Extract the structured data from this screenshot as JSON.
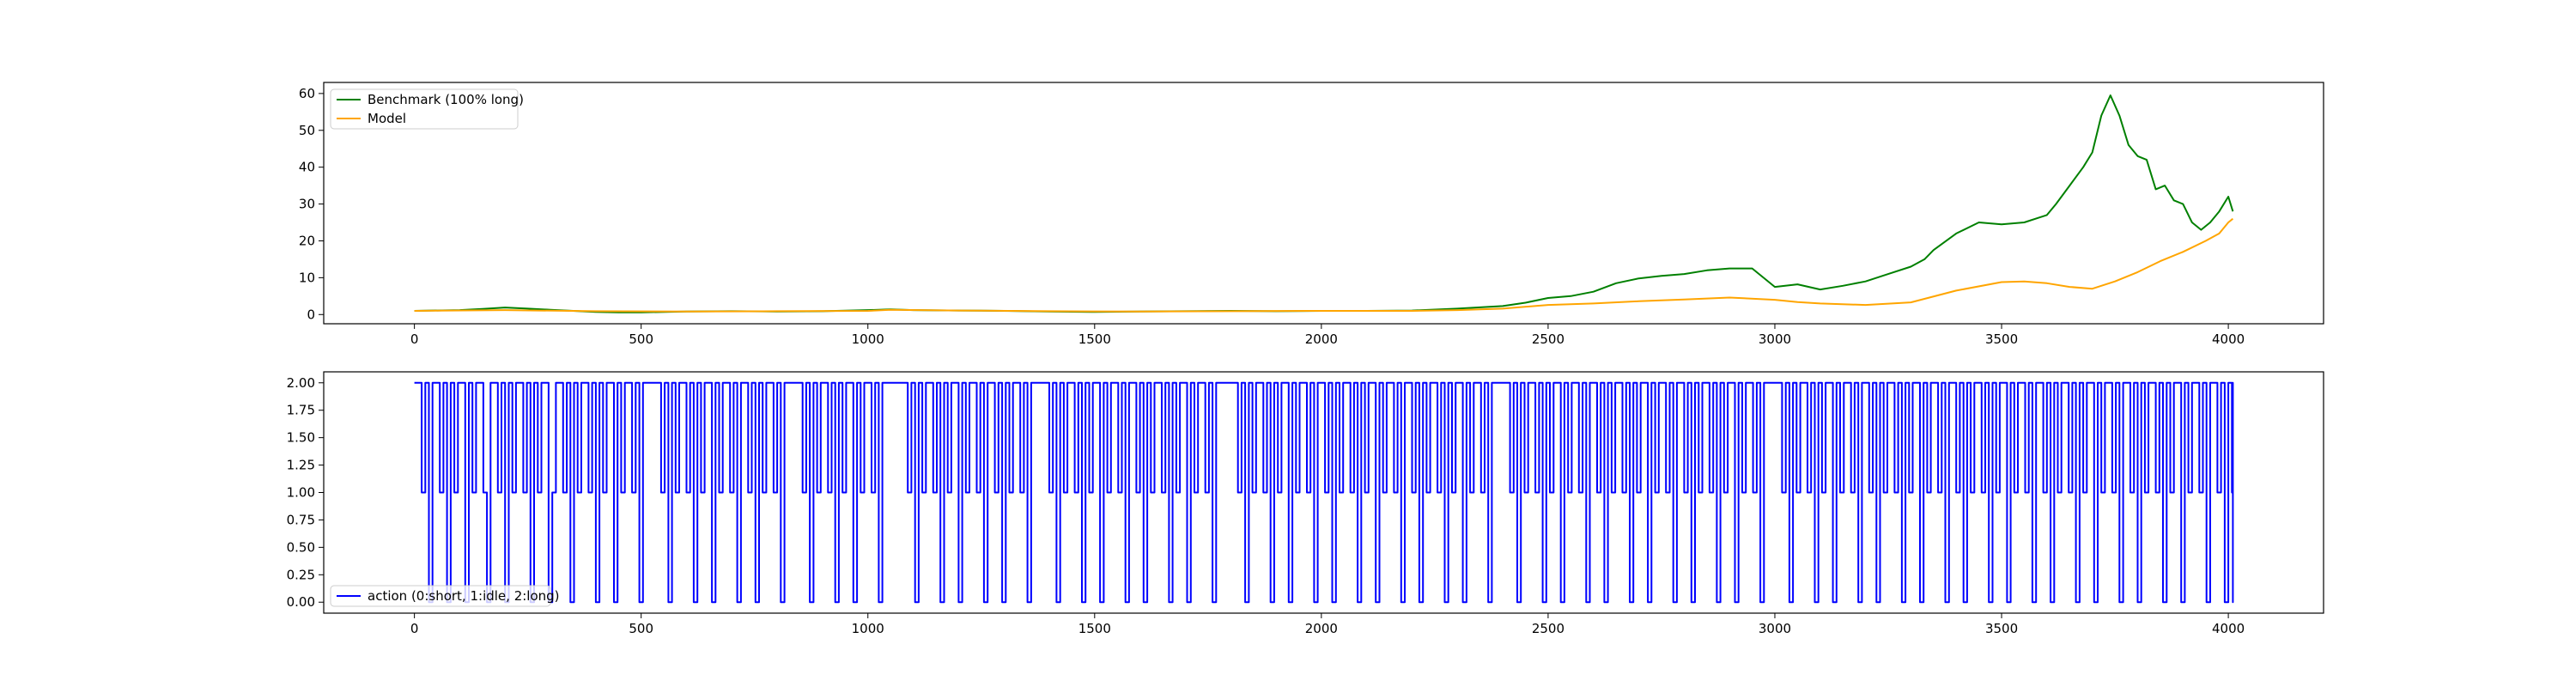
{
  "chart_data": [
    {
      "type": "line",
      "title": "",
      "xlabel": "",
      "ylabel": "",
      "xlim": [
        -200,
        4210
      ],
      "ylim": [
        -2.5,
        63
      ],
      "grid": false,
      "legend_position": "top-left",
      "x_ticks": [
        0,
        500,
        1000,
        1500,
        2000,
        2500,
        3000,
        3500,
        4000
      ],
      "y_ticks": [
        0,
        10,
        20,
        30,
        40,
        50,
        60
      ],
      "series": [
        {
          "name": "Benchmark (100% long)",
          "color": "#008000",
          "x": [
            0,
            100,
            150,
            200,
            250,
            300,
            350,
            400,
            450,
            500,
            600,
            700,
            800,
            900,
            1000,
            1050,
            1100,
            1200,
            1300,
            1400,
            1500,
            1600,
            1700,
            1800,
            1900,
            2000,
            2100,
            2200,
            2300,
            2400,
            2450,
            2500,
            2550,
            2600,
            2650,
            2700,
            2750,
            2800,
            2850,
            2900,
            2950,
            3000,
            3050,
            3100,
            3150,
            3200,
            3250,
            3300,
            3330,
            3350,
            3400,
            3450,
            3500,
            3550,
            3600,
            3620,
            3650,
            3680,
            3700,
            3720,
            3740,
            3760,
            3780,
            3800,
            3820,
            3840,
            3860,
            3880,
            3900,
            3920,
            3940,
            3960,
            3980,
            4000,
            4010
          ],
          "y": [
            1.0,
            1.2,
            1.5,
            1.9,
            1.6,
            1.3,
            1.0,
            0.7,
            0.6,
            0.6,
            0.8,
            0.9,
            0.8,
            0.9,
            1.2,
            1.4,
            1.2,
            1.1,
            1.0,
            0.8,
            0.7,
            0.8,
            0.9,
            1.0,
            0.9,
            1.0,
            1.0,
            1.1,
            1.6,
            2.3,
            3.2,
            4.5,
            5.0,
            6.2,
            8.5,
            9.8,
            10.5,
            11.0,
            12.0,
            12.5,
            12.5,
            7.5,
            8.2,
            6.8,
            7.8,
            9.0,
            11.0,
            13.0,
            15.0,
            17.5,
            22.0,
            25.0,
            24.5,
            25.0,
            27.0,
            30.0,
            35.0,
            40.0,
            44.0,
            54.0,
            59.5,
            54.0,
            46.0,
            43.0,
            42.0,
            34.0,
            35.0,
            31.0,
            30.0,
            25.0,
            23.0,
            25.0,
            28.0,
            32.0,
            28.0
          ]
        },
        {
          "name": "Model",
          "color": "#ffa500",
          "x": [
            0,
            200,
            400,
            600,
            800,
            1000,
            1050,
            1200,
            1400,
            1600,
            1800,
            2000,
            2200,
            2300,
            2400,
            2500,
            2600,
            2700,
            2800,
            2900,
            3000,
            3050,
            3100,
            3200,
            3300,
            3400,
            3500,
            3550,
            3600,
            3650,
            3700,
            3750,
            3800,
            3850,
            3900,
            3950,
            3980,
            4000,
            4010
          ],
          "y": [
            1.0,
            1.2,
            0.9,
            0.8,
            0.9,
            1.0,
            1.3,
            1.1,
            0.9,
            0.8,
            0.9,
            1.0,
            1.0,
            1.2,
            1.6,
            2.6,
            3.0,
            3.6,
            4.1,
            4.6,
            4.0,
            3.4,
            3.0,
            2.6,
            3.3,
            6.5,
            8.8,
            9.0,
            8.5,
            7.5,
            7.0,
            9.0,
            11.5,
            14.5,
            17.0,
            20.0,
            22.0,
            25.0,
            26.0
          ]
        }
      ]
    },
    {
      "type": "line",
      "title": "",
      "xlabel": "",
      "ylabel": "",
      "xlim": [
        -200,
        4210
      ],
      "ylim": [
        -0.1,
        2.1
      ],
      "grid": false,
      "legend_position": "bottom-left",
      "x_ticks": [
        0,
        500,
        1000,
        1500,
        2000,
        2500,
        3000,
        3500,
        4000
      ],
      "y_ticks": [
        "0.00",
        "0.25",
        "0.50",
        "0.75",
        "1.00",
        "1.25",
        "1.50",
        "1.75",
        "2.00"
      ],
      "step_interval": 8,
      "x_range": [
        0,
        4010
      ],
      "series": [
        {
          "name": "action (0:short, 1:idle, 2:long)",
          "color": "#0000ff",
          "values": [
            2,
            2,
            1,
            2,
            0,
            2,
            2,
            1,
            2,
            0,
            2,
            1,
            2,
            2,
            0,
            2,
            1,
            2,
            2,
            1,
            0,
            2,
            2,
            1,
            2,
            0,
            2,
            1,
            2,
            2,
            1,
            2,
            0,
            2,
            1,
            2,
            2,
            0,
            1,
            2,
            2,
            1,
            2,
            0,
            2,
            1,
            2,
            2,
            1,
            2,
            0,
            2,
            1,
            2,
            2,
            0,
            2,
            1,
            2,
            2,
            1,
            2,
            0,
            2,
            2,
            2,
            2,
            2,
            1,
            2,
            0,
            2,
            1,
            2,
            2,
            1,
            2,
            0,
            2,
            1,
            2,
            2,
            0,
            2,
            1,
            2,
            2,
            1,
            2,
            0,
            2,
            2,
            1,
            2,
            0,
            2,
            1,
            2,
            2,
            1,
            2,
            0,
            2,
            2,
            2,
            2,
            2,
            1,
            2,
            0,
            2,
            1,
            2,
            2,
            1,
            2,
            0,
            2,
            1,
            2,
            2,
            0,
            2,
            1,
            2,
            2,
            1,
            2,
            0,
            2,
            2,
            2,
            2,
            2,
            2,
            2,
            1,
            2,
            0,
            2,
            1,
            2,
            2,
            1,
            2,
            0,
            2,
            1,
            2,
            2,
            0,
            2,
            1,
            2,
            2,
            1,
            2,
            0,
            2,
            2,
            1,
            2,
            0,
            2,
            1,
            2,
            2,
            1,
            2,
            0,
            2,
            2,
            2,
            2,
            2,
            1,
            2,
            0,
            2,
            1,
            2,
            2,
            1,
            2,
            0,
            2,
            1,
            2,
            2,
            0,
            2,
            1,
            2,
            2,
            1,
            2,
            0,
            2,
            2,
            1,
            2,
            0,
            2,
            1,
            2,
            2,
            1,
            2,
            0,
            2,
            1,
            2,
            2,
            0,
            2,
            1,
            2,
            2,
            1,
            2,
            0,
            2,
            2,
            2,
            2,
            2,
            2,
            1,
            2,
            0,
            2,
            1,
            2,
            2,
            1,
            2,
            0,
            2,
            1,
            2,
            2,
            0,
            2,
            1,
            2,
            2,
            1,
            2,
            0,
            2,
            2,
            1,
            2,
            0,
            2,
            1,
            2,
            2,
            1,
            2,
            0,
            2,
            1,
            2,
            2,
            0,
            2,
            1,
            2,
            2,
            1,
            2,
            0,
            2,
            2,
            1,
            2,
            0,
            2,
            1,
            2,
            2,
            1,
            2,
            0,
            2,
            1,
            2,
            2,
            0,
            2,
            1,
            2,
            2,
            1,
            2,
            0,
            2,
            2,
            2,
            2,
            2,
            1,
            2,
            0,
            2,
            1,
            2,
            2,
            1,
            2,
            0,
            2,
            1,
            2,
            2,
            0,
            2,
            1,
            2,
            2,
            1,
            2,
            0,
            2,
            2,
            1,
            2,
            0,
            2,
            1,
            2,
            2,
            1,
            2,
            0,
            2,
            1,
            2,
            2,
            0,
            2,
            1,
            2,
            2,
            1,
            2,
            0,
            2,
            2,
            1,
            2,
            0,
            2,
            1,
            2,
            2,
            1,
            2,
            0,
            2,
            1,
            2,
            2,
            0,
            2,
            1,
            2,
            2,
            1,
            2,
            0,
            2,
            2,
            2,
            2,
            2,
            1,
            2,
            0,
            2,
            1,
            2,
            2,
            1,
            2,
            0,
            2,
            1,
            2,
            2,
            0,
            2,
            1,
            2,
            2,
            1,
            2,
            0,
            2,
            2,
            1,
            2,
            0,
            2,
            1,
            2,
            2,
            1,
            2,
            0,
            2,
            1,
            2,
            2,
            0,
            2,
            1,
            2,
            2,
            1,
            2,
            0,
            2,
            2,
            1,
            2,
            0,
            2,
            1,
            2,
            2,
            1,
            2,
            0,
            2,
            1,
            2,
            2,
            0,
            2,
            1,
            2,
            2,
            1,
            2,
            0,
            2,
            2,
            1,
            2,
            0,
            2,
            1,
            2,
            2,
            1,
            2,
            0,
            2,
            1,
            2,
            2,
            0,
            2,
            1,
            2,
            2,
            1,
            2,
            0,
            2,
            2,
            1,
            2,
            0,
            2,
            1,
            2,
            2,
            1,
            2,
            0,
            2,
            1,
            2,
            2,
            0,
            2,
            1,
            2,
            2,
            1,
            2,
            0,
            2,
            2,
            1,
            2,
            0,
            2,
            1,
            2,
            2,
            1,
            2,
            0,
            2,
            1,
            2,
            2,
            0,
            2,
            1,
            2,
            2,
            1,
            2,
            0,
            2,
            2,
            2,
            1,
            2,
            0,
            2,
            1,
            2,
            2,
            1,
            2,
            0,
            2,
            1,
            2,
            2,
            0,
            2,
            1,
            2,
            2,
            1,
            2,
            0
          ]
        }
      ]
    }
  ]
}
